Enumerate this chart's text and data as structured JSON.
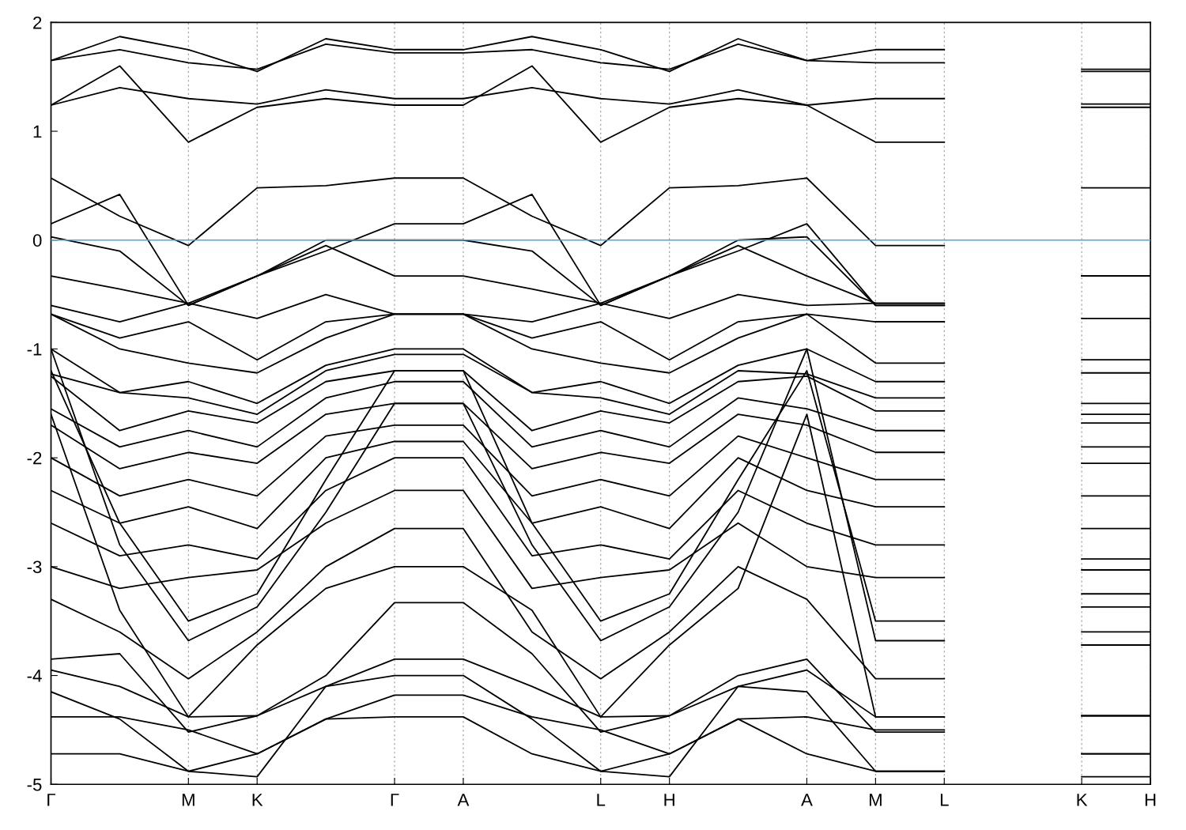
{
  "chart_data": {
    "type": "line",
    "categories": [
      "Γ",
      null,
      "M",
      "K",
      null,
      "Γ",
      "A",
      null,
      "L",
      "H",
      null,
      "A",
      "M",
      "L",
      null,
      "K",
      "H"
    ],
    "ylim": [
      -5,
      2
    ],
    "yticks": [
      -5,
      -4,
      -3,
      -2,
      -1,
      0,
      1,
      2
    ],
    "grid": "x",
    "line_style": "solid",
    "marker": "none",
    "ref_lines": [
      {
        "axis": "y",
        "value": 0,
        "color": "#3fa9e0",
        "line_style": "solid"
      }
    ],
    "series": [
      {
        "color": "#000000",
        "values": [
          1.65,
          1.87,
          1.75,
          1.55,
          1.85,
          1.75,
          1.75,
          1.87,
          1.75,
          1.55,
          1.85,
          1.65,
          1.75,
          1.75,
          null,
          1.55,
          1.55
        ]
      },
      {
        "color": "#000000",
        "values": [
          1.65,
          1.75,
          1.63,
          1.57,
          1.8,
          1.72,
          1.72,
          1.75,
          1.63,
          1.57,
          1.8,
          1.65,
          1.63,
          1.63,
          null,
          1.57,
          1.57
        ]
      },
      {
        "color": "#000000",
        "values": [
          1.24,
          1.6,
          0.9,
          1.22,
          1.3,
          1.24,
          1.24,
          1.6,
          0.9,
          1.22,
          1.3,
          1.24,
          0.9,
          0.9,
          null,
          1.22,
          1.22
        ]
      },
      {
        "color": "#000000",
        "values": [
          1.24,
          1.4,
          1.3,
          1.25,
          1.38,
          1.3,
          1.3,
          1.4,
          1.3,
          1.25,
          1.38,
          1.24,
          1.3,
          1.3,
          null,
          1.25,
          1.25
        ]
      },
      {
        "color": "#000000",
        "values": [
          0.57,
          0.22,
          -0.05,
          0.48,
          0.5,
          0.57,
          0.57,
          0.22,
          -0.05,
          0.48,
          0.5,
          0.57,
          -0.05,
          -0.05,
          null,
          0.48,
          0.48
        ]
      },
      {
        "color": "#000000",
        "values": [
          0.15,
          0.42,
          -0.6,
          -0.33,
          -0.1,
          0.15,
          0.15,
          0.42,
          -0.6,
          -0.33,
          -0.1,
          0.15,
          -0.6,
          -0.6,
          null,
          -0.33,
          -0.33
        ]
      },
      {
        "color": "#000000",
        "values": [
          0.03,
          -0.1,
          -0.6,
          -0.33,
          0.0,
          0.0,
          0.0,
          -0.1,
          -0.6,
          -0.33,
          0.0,
          0.03,
          -0.6,
          -0.6,
          null,
          -0.33,
          -0.33
        ]
      },
      {
        "color": "#000000",
        "values": [
          -0.33,
          -0.45,
          -0.58,
          -0.33,
          -0.05,
          -0.33,
          -0.33,
          -0.45,
          -0.58,
          -0.33,
          -0.05,
          -0.33,
          -0.58,
          -0.58,
          null,
          -0.33,
          -0.33
        ]
      },
      {
        "color": "#000000",
        "values": [
          -0.6,
          -0.75,
          -0.58,
          -0.72,
          -0.5,
          -0.68,
          -0.68,
          -0.75,
          -0.58,
          -0.72,
          -0.5,
          -0.6,
          -0.58,
          -0.58,
          null,
          -0.72,
          -0.72
        ]
      },
      {
        "color": "#000000",
        "values": [
          -0.68,
          -0.9,
          -0.75,
          -1.1,
          -0.75,
          -0.68,
          -0.68,
          -0.9,
          -0.75,
          -1.1,
          -0.75,
          -0.68,
          -0.75,
          -0.75,
          null,
          -1.1,
          -1.1
        ]
      },
      {
        "color": "#000000",
        "values": [
          -0.68,
          -1.0,
          -1.13,
          -1.22,
          -0.9,
          -0.68,
          -0.68,
          -1.0,
          -1.13,
          -1.22,
          -0.9,
          -0.68,
          -1.13,
          -1.13,
          null,
          -1.22,
          -1.22
        ]
      },
      {
        "color": "#000000",
        "values": [
          -1.0,
          -1.4,
          -1.3,
          -1.5,
          -1.15,
          -1.0,
          -1.0,
          -1.4,
          -1.3,
          -1.5,
          -1.15,
          -1.0,
          -1.3,
          -1.3,
          null,
          -1.5,
          -1.5
        ]
      },
      {
        "color": "#000000",
        "values": [
          -1.23,
          -1.4,
          -1.45,
          -1.6,
          -1.2,
          -1.05,
          -1.05,
          -1.4,
          -1.45,
          -1.6,
          -1.2,
          -1.23,
          -1.45,
          -1.45,
          null,
          -1.6,
          -1.6
        ]
      },
      {
        "color": "#000000",
        "values": [
          -1.25,
          -1.75,
          -1.57,
          -1.68,
          -1.3,
          -1.2,
          -1.2,
          -1.75,
          -1.57,
          -1.68,
          -1.3,
          -1.25,
          -1.57,
          -1.57,
          null,
          -1.68,
          -1.68
        ]
      },
      {
        "color": "#000000",
        "values": [
          -1.55,
          -1.9,
          -1.75,
          -1.9,
          -1.45,
          -1.3,
          -1.3,
          -1.9,
          -1.75,
          -1.9,
          -1.45,
          -1.55,
          -1.75,
          -1.75,
          null,
          -1.9,
          -1.9
        ]
      },
      {
        "color": "#000000",
        "values": [
          -1.7,
          -2.1,
          -1.95,
          -2.05,
          -1.6,
          -1.5,
          -1.5,
          -2.1,
          -1.95,
          -2.05,
          -1.6,
          -1.7,
          -1.95,
          -1.95,
          null,
          -2.05,
          -2.05
        ]
      },
      {
        "color": "#000000",
        "values": [
          -2.0,
          -2.35,
          -2.2,
          -2.35,
          -1.8,
          -1.7,
          -1.7,
          -2.35,
          -2.2,
          -2.35,
          -1.8,
          -2.0,
          -2.2,
          -2.2,
          null,
          -2.35,
          -2.35
        ]
      },
      {
        "color": "#000000",
        "values": [
          -2.3,
          -2.6,
          -2.45,
          -2.65,
          -2.0,
          -1.85,
          -1.85,
          -2.6,
          -2.45,
          -2.65,
          -2.0,
          -2.3,
          -2.45,
          -2.45,
          null,
          -2.65,
          -2.65
        ]
      },
      {
        "color": "#000000",
        "values": [
          -2.6,
          -2.9,
          -2.8,
          -2.93,
          -2.3,
          -2.0,
          -2.0,
          -2.9,
          -2.8,
          -2.93,
          -2.3,
          -2.6,
          -2.8,
          -2.8,
          null,
          -2.93,
          -2.93
        ]
      },
      {
        "color": "#000000",
        "values": [
          -3.0,
          -3.2,
          -3.1,
          -3.03,
          -2.6,
          -2.3,
          -2.3,
          -3.2,
          -3.1,
          -3.03,
          -2.6,
          -3.0,
          -3.1,
          -3.1,
          null,
          -3.03,
          -3.03
        ]
      },
      {
        "color": "#000000",
        "values": [
          -1.2,
          -2.6,
          -3.5,
          -3.25,
          -2.2,
          -1.2,
          -1.2,
          -2.6,
          -3.5,
          -3.25,
          -2.2,
          -1.2,
          -3.5,
          -3.5,
          null,
          -3.25,
          -3.25
        ]
      },
      {
        "color": "#000000",
        "values": [
          -1.0,
          -2.8,
          -3.68,
          -3.37,
          -2.5,
          -1.5,
          -1.5,
          -2.8,
          -3.68,
          -3.37,
          -2.5,
          -1.0,
          -3.68,
          -3.68,
          null,
          -3.37,
          -3.37
        ]
      },
      {
        "color": "#000000",
        "values": [
          -3.3,
          -3.6,
          -4.03,
          -3.6,
          -3.0,
          -2.65,
          -2.65,
          -3.6,
          -4.03,
          -3.6,
          -3.0,
          -3.3,
          -4.03,
          -4.03,
          null,
          -3.6,
          -3.6
        ]
      },
      {
        "color": "#000000",
        "values": [
          -1.6,
          -3.4,
          -4.38,
          -3.72,
          -3.2,
          -3.0,
          -3.0,
          -3.4,
          -4.38,
          -3.72,
          -3.2,
          -1.6,
          -4.38,
          -4.38,
          null,
          -3.72,
          -3.72
        ]
      },
      {
        "color": "#000000",
        "values": [
          -3.85,
          -3.8,
          -4.52,
          -4.37,
          -4.0,
          -3.33,
          -3.33,
          -3.8,
          -4.52,
          -4.37,
          -4.0,
          -3.85,
          -4.52,
          -4.52,
          null,
          -4.37,
          -4.37
        ]
      },
      {
        "color": "#000000",
        "values": [
          -3.95,
          -4.1,
          -4.38,
          -4.37,
          -4.1,
          -3.85,
          -3.85,
          -4.1,
          -4.38,
          -4.37,
          -4.1,
          -3.95,
          -4.38,
          -4.38,
          null,
          -4.37,
          -4.37
        ]
      },
      {
        "color": "#000000",
        "values": [
          -4.15,
          -4.4,
          -4.88,
          -4.93,
          -4.1,
          -4.0,
          -4.0,
          -4.4,
          -4.88,
          -4.93,
          -4.1,
          -4.15,
          -4.88,
          -4.88,
          null,
          -4.93,
          -4.93
        ]
      },
      {
        "color": "#000000",
        "values": [
          -4.38,
          -4.38,
          -4.5,
          -4.72,
          -4.4,
          -4.18,
          -4.18,
          -4.38,
          -4.5,
          -4.72,
          -4.4,
          -4.38,
          -4.5,
          -4.5,
          null,
          -4.72,
          -4.72
        ]
      },
      {
        "color": "#000000",
        "values": [
          -4.72,
          -4.72,
          -4.88,
          -4.72,
          -4.4,
          -4.38,
          -4.38,
          -4.72,
          -4.88,
          -4.72,
          -4.4,
          -4.72,
          -4.88,
          -4.88,
          null,
          -4.72,
          -4.72
        ]
      }
    ]
  }
}
